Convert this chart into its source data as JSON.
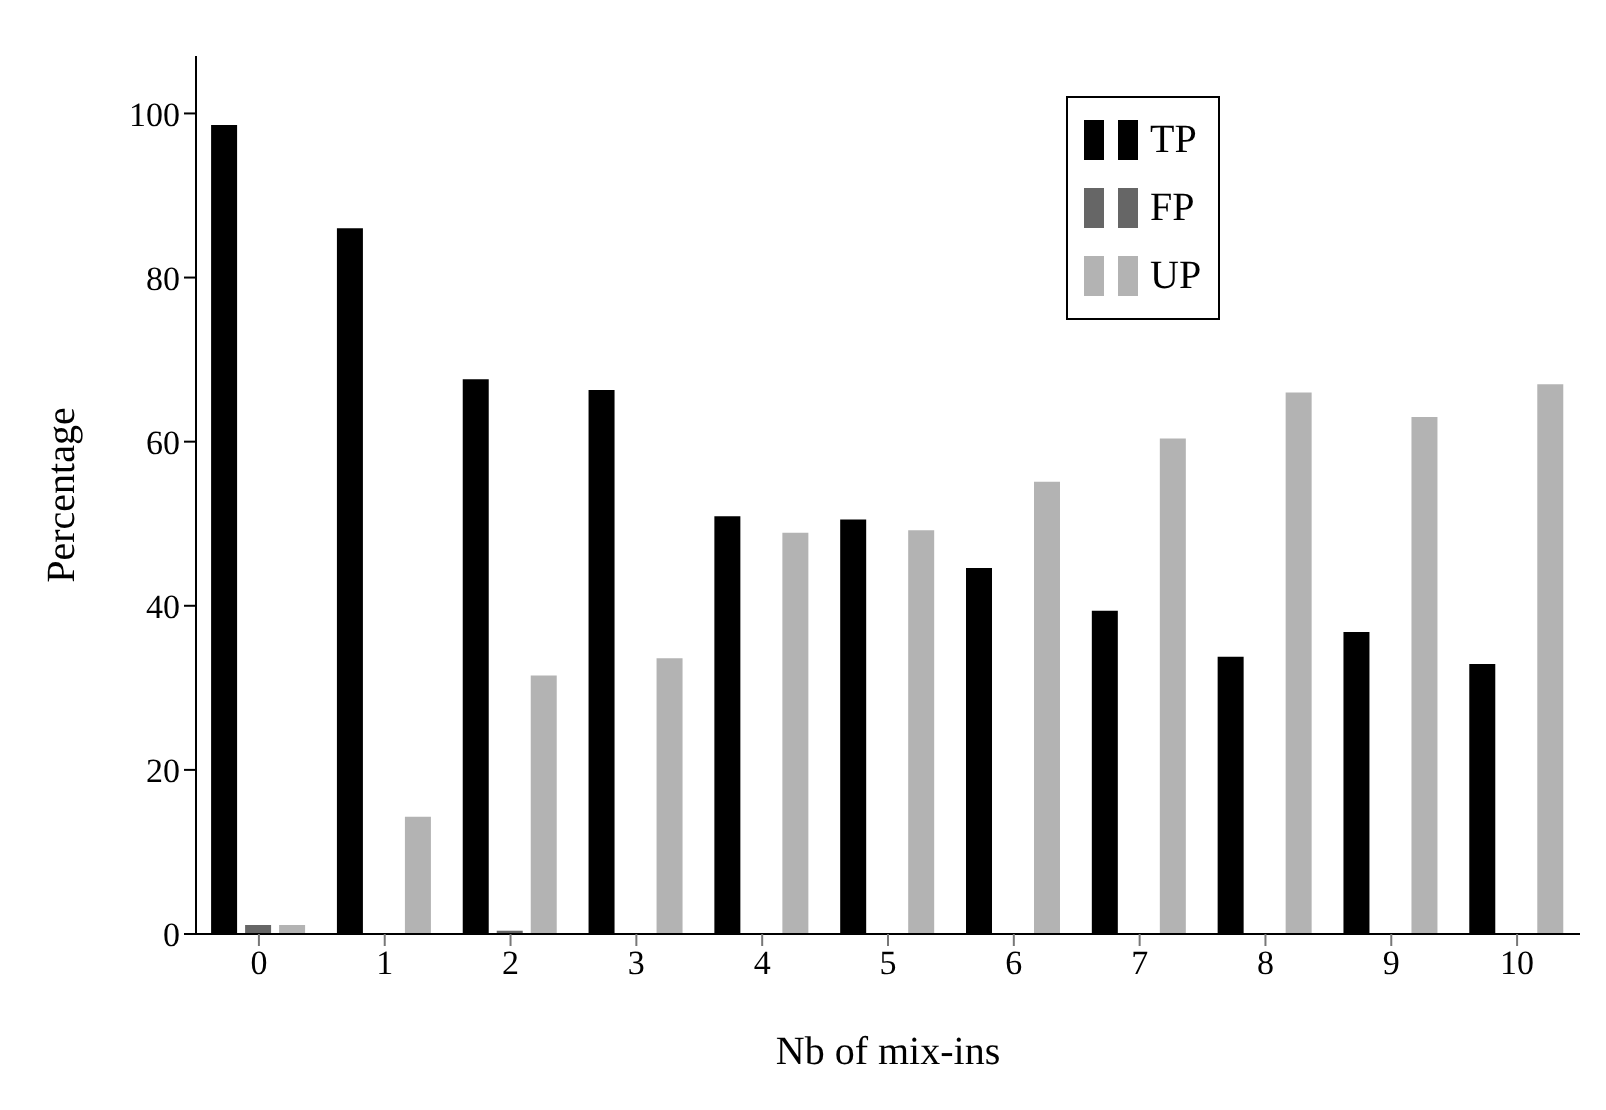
{
  "chart_data": {
    "type": "bar",
    "xlabel": "Nb of mix-ins",
    "ylabel": "Percentage",
    "categories": [
      "0",
      "1",
      "2",
      "3",
      "4",
      "5",
      "6",
      "7",
      "8",
      "9",
      "10"
    ],
    "series": [
      {
        "name": "TP",
        "color": "#000000",
        "values": [
          98.6,
          86.0,
          67.6,
          66.3,
          50.9,
          50.5,
          44.6,
          39.4,
          33.8,
          36.8,
          32.9
        ]
      },
      {
        "name": "FP",
        "color": "#666666",
        "values": [
          1.1,
          0,
          0.4,
          0,
          0,
          0,
          0,
          0,
          0,
          0,
          0
        ]
      },
      {
        "name": "UP",
        "color": "#b3b3b3",
        "values": [
          1.1,
          14.3,
          31.5,
          33.6,
          48.9,
          49.2,
          55.1,
          60.4,
          66.0,
          63.0,
          67.0
        ]
      }
    ],
    "ylim": [
      0,
      107
    ],
    "yticks": [
      0,
      20,
      40,
      60,
      80,
      100
    ],
    "grid": false,
    "legend": "top right"
  }
}
